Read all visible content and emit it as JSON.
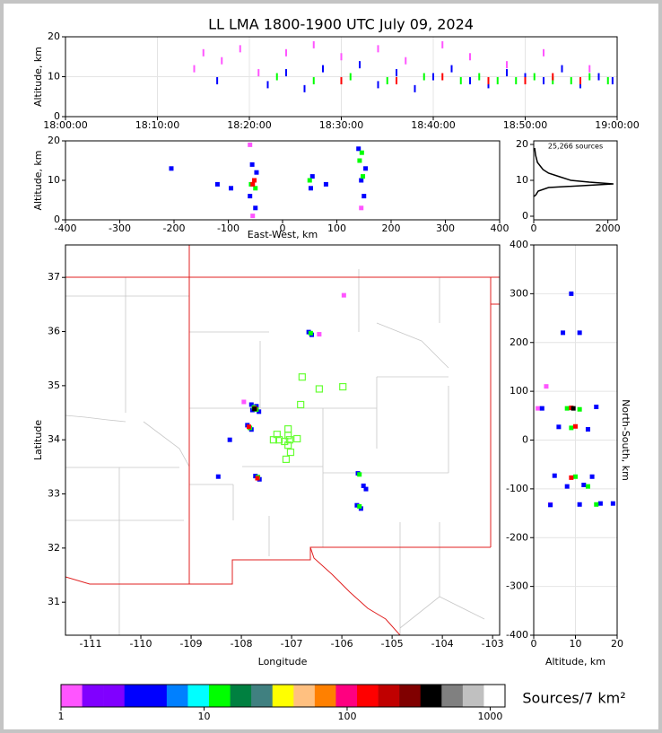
{
  "chart_data": [
    {
      "type": "scatter",
      "title": "LL LMA 1800-1900 UTC July 09, 2024",
      "ylabel": "Altitude, km",
      "marker": "streak",
      "grid": true,
      "xlim": [
        0,
        60
      ],
      "xticks": [
        {
          "value": 0,
          "label": "18:00:00"
        },
        {
          "value": 10,
          "label": "18:10:00"
        },
        {
          "value": 20,
          "label": "18:20:00"
        },
        {
          "value": 30,
          "label": "18:30:00"
        },
        {
          "value": 40,
          "label": "18:40:00"
        },
        {
          "value": 50,
          "label": "18:50:00"
        },
        {
          "value": 60,
          "label": "19:00:00"
        }
      ],
      "ylim": [
        0,
        20
      ],
      "yticks": [
        0,
        10,
        20
      ],
      "series": [
        {
          "color": "#ff55ff",
          "x": [
            14,
            15,
            17,
            19,
            21,
            24,
            27,
            30,
            34,
            37,
            41,
            44,
            48,
            52,
            57
          ],
          "y": [
            12,
            16,
            14,
            17,
            11,
            16,
            18,
            15,
            17,
            14,
            18,
            15,
            13,
            16,
            12
          ]
        },
        {
          "color": "#0000ff",
          "x": [
            16.5,
            22,
            24,
            26,
            28,
            30,
            32,
            34,
            36,
            38,
            40,
            42,
            44,
            46,
            48,
            50,
            52,
            54,
            56,
            58,
            59.5
          ],
          "y": [
            9,
            8,
            11,
            7,
            12,
            9,
            13,
            8,
            11,
            7,
            10,
            12,
            9,
            8,
            11,
            10,
            9,
            12,
            8,
            10,
            9
          ]
        },
        {
          "color": "#00ff00",
          "x": [
            23,
            27,
            31,
            35,
            39,
            43,
            45,
            47,
            49,
            51,
            53,
            55,
            57,
            59
          ],
          "y": [
            10,
            9,
            10,
            9,
            10,
            9,
            10,
            9,
            9,
            10,
            9,
            9,
            10,
            9
          ]
        },
        {
          "color": "#ff0000",
          "x": [
            30,
            36,
            41,
            46,
            50,
            53,
            56
          ],
          "y": [
            9,
            9,
            10,
            9,
            9,
            10,
            9
          ]
        }
      ]
    },
    {
      "type": "scatter",
      "xlabel": "East-West, km",
      "ylabel": "Altitude, km",
      "marker": "dot",
      "grid": false,
      "xlim": [
        -400,
        400
      ],
      "xticks": [
        -400,
        -300,
        -200,
        -100,
        0,
        100,
        200,
        300,
        400
      ],
      "ylim": [
        0,
        20
      ],
      "yticks": [
        0,
        10,
        20
      ],
      "series": [
        {
          "color": "#ff55ff",
          "x": [
            -55,
            145,
            -60
          ],
          "y": [
            1,
            3,
            19
          ]
        },
        {
          "color": "#0000ff",
          "x": [
            -60,
            -48,
            -56,
            -50,
            52,
            55,
            140,
            150,
            145,
            153,
            -120,
            -95,
            -205,
            80
          ],
          "y": [
            6,
            12,
            14,
            3,
            8,
            11,
            18,
            6,
            10,
            13,
            9,
            8,
            13,
            9
          ]
        },
        {
          "color": "#00ff00",
          "x": [
            -58,
            -50,
            50,
            142,
            148,
            146
          ],
          "y": [
            9,
            8,
            10,
            15,
            11,
            17
          ]
        },
        {
          "color": "#ff0000",
          "x": [
            -55,
            -52
          ],
          "y": [
            9,
            10
          ]
        }
      ]
    },
    {
      "type": "line",
      "annotation": "25,266 sources",
      "color": "#000000",
      "grid": false,
      "xlim": [
        0,
        2250
      ],
      "xticks": [
        0,
        2000
      ],
      "ylim": [
        -1,
        21
      ],
      "yticks": [
        0,
        10,
        20
      ],
      "x": [
        10,
        60,
        120,
        400,
        2150,
        1500,
        1000,
        700,
        400,
        250,
        100,
        50,
        25
      ],
      "y": [
        5.5,
        6,
        7,
        8,
        9,
        9.5,
        10,
        11,
        12,
        13,
        15,
        17,
        19
      ]
    },
    {
      "type": "scatter",
      "xlabel": "Longitude",
      "ylabel": "Latitude",
      "marker": "dot",
      "grid": false,
      "xlim": [
        -111.5,
        -102.86
      ],
      "xticks": [
        -111,
        -110,
        -109,
        -108,
        -107,
        -106,
        -105,
        -104,
        -103
      ],
      "ylim": [
        30.39,
        37.6
      ],
      "yticks": [
        31,
        32,
        33,
        34,
        35,
        36,
        37
      ],
      "series": [
        {
          "color": "#ff55ff",
          "x": [
            -105.96,
            -107.95,
            -106.45
          ],
          "y": [
            36.67,
            34.7,
            35.95
          ]
        },
        {
          "color": "#0000ff",
          "x": [
            -107.8,
            -107.65,
            -107.7,
            -107.78,
            -107.88,
            -107.8,
            -107.72,
            -107.64,
            -106.66,
            -106.6,
            -105.68,
            -105.57,
            -105.52,
            -105.7,
            -105.62,
            -108.23,
            -108.46
          ],
          "y": [
            34.65,
            34.52,
            34.62,
            34.55,
            34.27,
            34.19,
            33.33,
            33.27,
            35.99,
            35.94,
            33.38,
            33.15,
            33.09,
            32.79,
            32.73,
            34.0,
            33.32
          ]
        },
        {
          "color": "#00ff00",
          "x": [
            -107.75,
            -107.7,
            -107.83,
            -107.67,
            -105.65,
            -105.65,
            -106.62
          ],
          "y": [
            34.6,
            34.56,
            34.22,
            33.31,
            33.36,
            32.77,
            35.97
          ]
        },
        {
          "color": "#ff0000",
          "x": [
            -107.73,
            -107.85,
            -107.68
          ],
          "y": [
            34.58,
            34.24,
            33.29
          ]
        },
        {
          "color": "#000000",
          "x": [
            -107.74
          ],
          "y": [
            34.57
          ]
        },
        {
          "color": "#66ff33",
          "marker": "square",
          "x": [
            -106.79,
            -106.45,
            -105.98,
            -106.82,
            -107.07,
            -107.29,
            -107.36,
            -107.25,
            -107.14,
            -107.04,
            -106.89,
            -107.07,
            -107.07,
            -107.02,
            -107.11
          ],
          "y": [
            35.16,
            34.94,
            34.98,
            34.65,
            34.2,
            34.1,
            34.0,
            34.0,
            33.97,
            34.0,
            34.02,
            34.08,
            33.9,
            33.77,
            33.64
          ]
        }
      ]
    },
    {
      "type": "scatter",
      "xlabel": "Altitude, km",
      "ylabel": "North-South, km",
      "marker": "dot",
      "grid": true,
      "xlim": [
        0,
        20
      ],
      "xticks": [
        0,
        10,
        20
      ],
      "ylim": [
        -400,
        400
      ],
      "yticks": [
        -400,
        -300,
        -200,
        -100,
        0,
        100,
        200,
        300,
        400
      ],
      "series": [
        {
          "color": "#ff55ff",
          "x": [
            1,
            4,
            3
          ],
          "y": [
            65,
            -132,
            110
          ]
        },
        {
          "color": "#0000ff",
          "x": [
            7,
            11,
            2,
            15,
            6,
            13,
            5,
            14,
            8,
            12,
            11,
            16,
            4,
            19,
            9
          ],
          "y": [
            220,
            220,
            65,
            68,
            27,
            22,
            -73,
            -75,
            -95,
            -92,
            -132,
            -130,
            -133,
            -130,
            300
          ]
        },
        {
          "color": "#00ff00",
          "x": [
            8,
            11,
            9,
            10,
            13,
            15
          ],
          "y": [
            65,
            63,
            25,
            -75,
            -95,
            -132
          ]
        },
        {
          "color": "#ff0000",
          "x": [
            9,
            10,
            9
          ],
          "y": [
            66,
            28,
            -77
          ]
        },
        {
          "color": "#000000",
          "x": [
            9.5
          ],
          "y": [
            65
          ]
        }
      ]
    },
    {
      "type": "colorbar",
      "label": "Sources/7 km²",
      "scale": "log",
      "xlim": [
        1,
        1270
      ],
      "xticks": [
        1,
        10,
        100,
        1000
      ],
      "colors": [
        "#ff55ff",
        "#8000ff",
        "#8000ff",
        "#0000ff",
        "#0000ff",
        "#0080ff",
        "#00ffff",
        "#00ff00",
        "#008040",
        "#408080",
        "#ffff00",
        "#ffc080",
        "#ff8000",
        "#ff0080",
        "#ff0000",
        "#c00000",
        "#800000",
        "#000000",
        "#808080",
        "#c0c0c0",
        "#ffffff"
      ]
    }
  ]
}
